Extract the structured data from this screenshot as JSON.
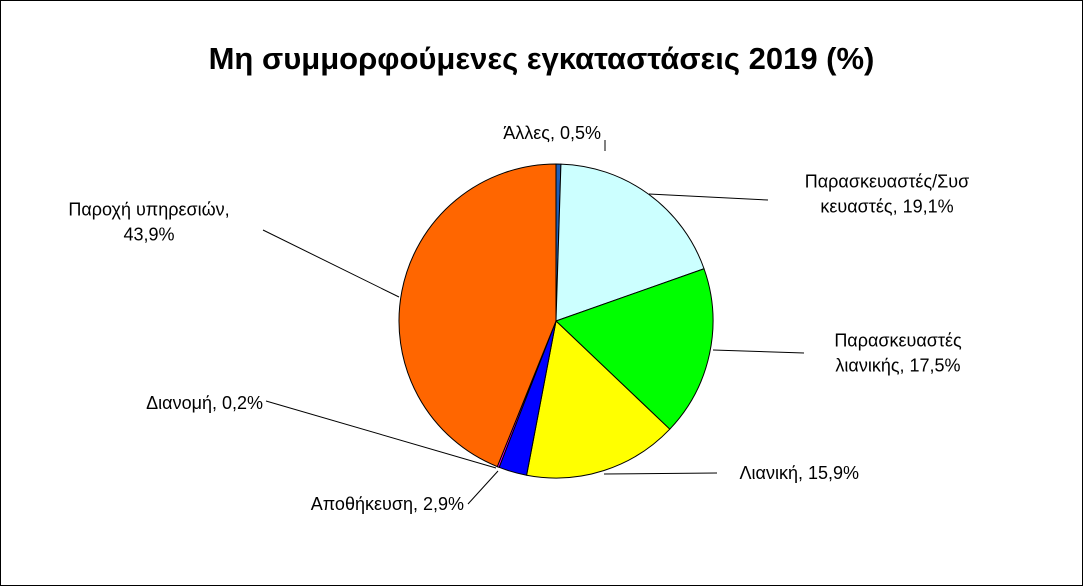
{
  "chart_data": {
    "type": "pie",
    "title": "Μη συμμορφούμενες εγκαταστάσεις 2019 (%)",
    "slices": [
      {
        "label": "Άλλες",
        "value": 0.5,
        "display": [
          "Άλλες, 0,5%"
        ],
        "color": "#1f5fb8"
      },
      {
        "label": "Παρασκευαστές/Συσκευαστές",
        "value": 19.1,
        "display": [
          "Παρασκευαστές/Συσ",
          "κευαστές, 19,1%"
        ],
        "color": "#ccffff"
      },
      {
        "label": "Παρασκευαστές λιανικής",
        "value": 17.5,
        "display": [
          "Παρασκευαστές",
          "λιανικής, 17,5%"
        ],
        "color": "#00ff00"
      },
      {
        "label": "Λιανική",
        "value": 15.9,
        "display": [
          "Λιανική, 15,9%"
        ],
        "color": "#ffff00"
      },
      {
        "label": "Αποθήκευση",
        "value": 2.9,
        "display": [
          "Αποθήκευση, 2,9%"
        ],
        "color": "#0000ff"
      },
      {
        "label": "Διανομή",
        "value": 0.2,
        "display": [
          "Διανομή, 0,2%"
        ],
        "color": "#ff00ff"
      },
      {
        "label": "Παροχή υπηρεσιών",
        "value": 43.9,
        "display": [
          "Παροχή υπηρεσιών,",
          "43,9%"
        ],
        "color": "#ff6600"
      }
    ]
  }
}
